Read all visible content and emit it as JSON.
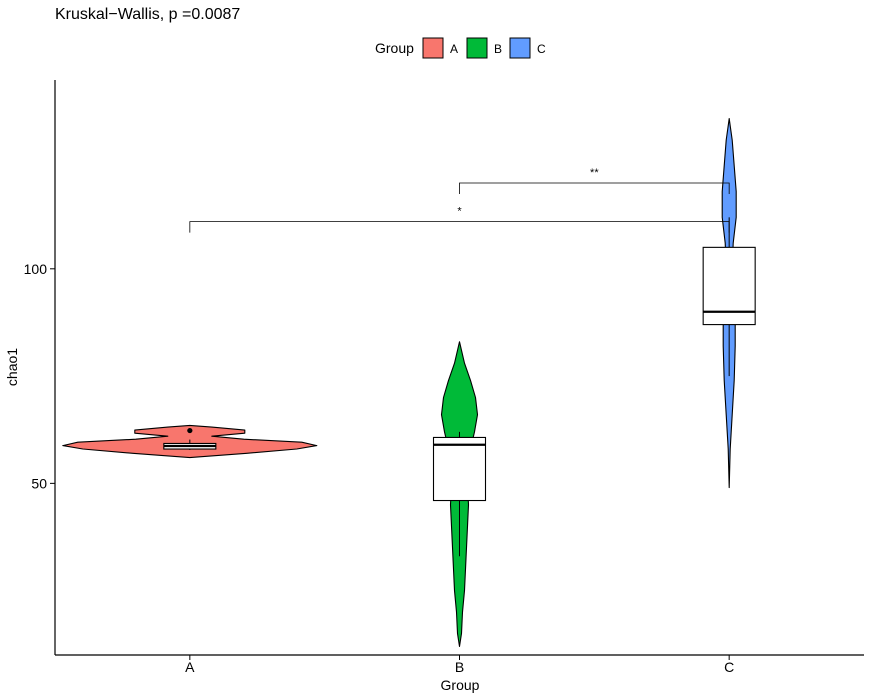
{
  "chart_data": {
    "type": "violin",
    "title": "Kruskal−Wallis, p =0.0087",
    "xlabel": "Group",
    "ylabel": "chao1",
    "categories": [
      "A",
      "B",
      "C"
    ],
    "ylim": [
      10,
      144
    ],
    "yticks": [
      50,
      100
    ],
    "grid": false,
    "legend": {
      "title": "Group",
      "position": "top",
      "entries": [
        "A",
        "B",
        "C"
      ]
    },
    "colors": {
      "A": "#F8766D",
      "B": "#00BA38",
      "C": "#619CFF"
    },
    "groups": [
      {
        "name": "A",
        "violin": {
          "profile": [
            [
              56.0,
              0
            ],
            [
              57.0,
              57
            ],
            [
              58.0,
              107
            ],
            [
              58.8,
              127
            ],
            [
              59.6,
              112
            ],
            [
              60.3,
              54
            ],
            [
              61.0,
              22
            ],
            [
              61.7,
              55
            ],
            [
              62.4,
              55
            ],
            [
              63.1,
              22
            ],
            [
              63.5,
              0
            ]
          ]
        },
        "box": {
          "q1": 58.0,
          "median": 58.7,
          "q3": 59.3,
          "whisker_low": 57.8,
          "whisker_high": 60.2
        },
        "outliers": [
          62.3
        ]
      },
      {
        "name": "B",
        "violin": {
          "profile": [
            [
              12.0,
              0
            ],
            [
              15.0,
              2
            ],
            [
              20.0,
              3
            ],
            [
              25.0,
              5
            ],
            [
              30.0,
              6
            ],
            [
              35.0,
              7
            ],
            [
              40.0,
              8
            ],
            [
              45.0,
              9
            ],
            [
              50.0,
              8
            ],
            [
              55.0,
              8
            ],
            [
              58.0,
              11
            ],
            [
              62.0,
              15
            ],
            [
              66.0,
              18
            ],
            [
              70.0,
              16
            ],
            [
              74.0,
              11
            ],
            [
              78.0,
              5
            ],
            [
              83.0,
              0
            ]
          ]
        },
        "box": {
          "q1": 46.0,
          "median": 59.0,
          "q3": 60.7,
          "whisker_low": 33.0,
          "whisker_high": 62.0
        },
        "outliers": []
      },
      {
        "name": "C",
        "violin": {
          "profile": [
            [
              49.0,
              0
            ],
            [
              58.0,
              1
            ],
            [
              66.0,
              3
            ],
            [
              74.0,
              5
            ],
            [
              82.0,
              6
            ],
            [
              88.0,
              6
            ],
            [
              95.0,
              4
            ],
            [
              100.0,
              3
            ],
            [
              106.0,
              4
            ],
            [
              112.0,
              7
            ],
            [
              118.0,
              7
            ],
            [
              124.0,
              5
            ],
            [
              130.0,
              3
            ],
            [
              135.0,
              0
            ]
          ]
        },
        "box": {
          "q1": 87.0,
          "median": 90.0,
          "q3": 105.0,
          "whisker_low": 75.0,
          "whisker_high": 112.0
        },
        "outliers": []
      }
    ],
    "comparisons": [
      {
        "groups": [
          "A",
          "C"
        ],
        "label": "*",
        "y": 111
      },
      {
        "groups": [
          "B",
          "C"
        ],
        "label": "**",
        "y": 120
      }
    ]
  }
}
